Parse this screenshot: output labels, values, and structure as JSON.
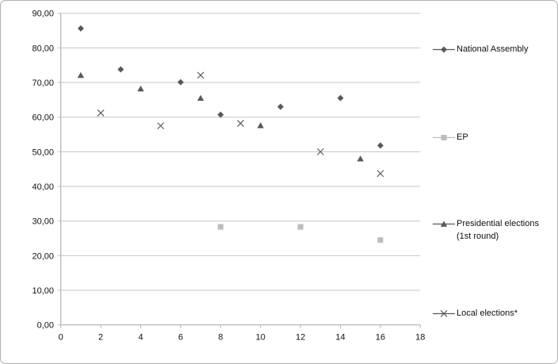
{
  "frame": {
    "border_color": "#b0b0b0",
    "background": "#ffffff"
  },
  "chart_data": {
    "type": "scatter",
    "title": "",
    "xlabel": "",
    "ylabel": "",
    "xlim": [
      0,
      18
    ],
    "ylim": [
      0,
      90
    ],
    "grid": true,
    "legend_position": "right",
    "number_format": "decimal-comma",
    "x_axis": {
      "values": [
        0,
        2,
        4,
        6,
        8,
        10,
        12,
        14,
        16,
        18
      ],
      "labels": [
        "0",
        "2",
        "4",
        "6",
        "8",
        "10",
        "12",
        "14",
        "16",
        "18"
      ]
    },
    "y_axis": {
      "values": [
        0,
        10,
        20,
        30,
        40,
        50,
        60,
        70,
        80,
        90
      ],
      "labels": [
        "0,00",
        "10,00",
        "20,00",
        "30,00",
        "40,00",
        "50,00",
        "60,00",
        "70,00",
        "80,00",
        "90,00"
      ]
    },
    "series": [
      {
        "name": "National Assembly",
        "marker": "diamond",
        "color": "#595959",
        "points": [
          [
            1,
            85.6
          ],
          [
            3,
            73.8
          ],
          [
            6,
            70.1
          ],
          [
            8,
            60.7
          ],
          [
            11,
            63.0
          ],
          [
            14,
            65.5
          ],
          [
            16,
            51.8
          ]
        ]
      },
      {
        "name": "EP",
        "marker": "square",
        "color": "#bdbdbd",
        "points": [
          [
            8,
            28.3
          ],
          [
            12,
            28.3
          ],
          [
            16,
            24.5
          ]
        ]
      },
      {
        "name": "Presidential elections (1st round)",
        "marker": "triangle",
        "color": "#595959",
        "points": [
          [
            1,
            72.1
          ],
          [
            4,
            68.2
          ],
          [
            7,
            65.5
          ],
          [
            10,
            57.6
          ],
          [
            15,
            48.0
          ]
        ]
      },
      {
        "name": "Local elections*",
        "marker": "x",
        "color": "#595959",
        "points": [
          [
            2,
            61.2
          ],
          [
            5,
            57.5
          ],
          [
            7,
            72.1
          ],
          [
            9,
            58.2
          ],
          [
            13,
            50.0
          ],
          [
            16,
            43.7
          ]
        ]
      }
    ],
    "colors": {
      "gridline": "#c6c6c6",
      "axis": "#a3a3a3",
      "tick": "#b3b3b3",
      "tick_label": "#111111"
    }
  }
}
